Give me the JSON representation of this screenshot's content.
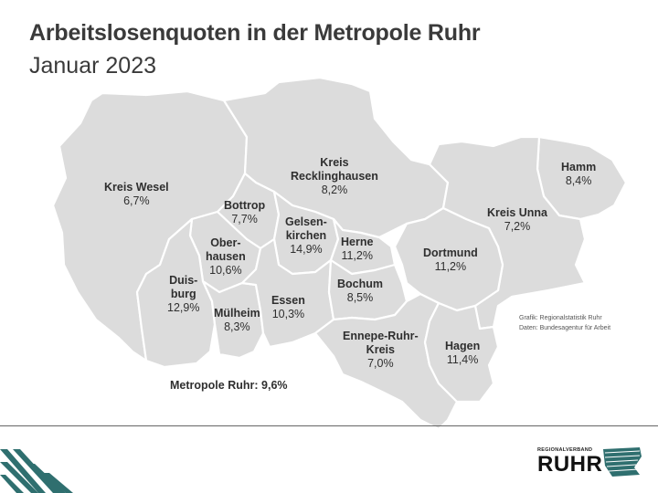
{
  "header": {
    "title": "Arbeitslosenquoten in der Metropole Ruhr",
    "subtitle": "Januar 2023"
  },
  "regions": [
    {
      "name": "Kreis Wesel",
      "value": "6,7%"
    },
    {
      "name": "Kreis Recklinghausen",
      "value": "8,2%"
    },
    {
      "name": "Hamm",
      "value": "8,4%"
    },
    {
      "name": "Bottrop",
      "value": "7,7%"
    },
    {
      "name": "Gelsenkirchen",
      "value": "14,9%"
    },
    {
      "name": "Herne",
      "value": "11,2%"
    },
    {
      "name": "Kreis Unna",
      "value": "7,2%"
    },
    {
      "name": "Oberhausen",
      "value": "10,6%"
    },
    {
      "name": "Dortmund",
      "value": "11,2%"
    },
    {
      "name": "Duisburg",
      "value": "12,9%"
    },
    {
      "name": "Mülheim",
      "value": "8,3%"
    },
    {
      "name": "Essen",
      "value": "10,3%"
    },
    {
      "name": "Bochum",
      "value": "8,5%"
    },
    {
      "name": "Ennepe-Ruhr-Kreis",
      "value": "7,0%"
    },
    {
      "name": "Hagen",
      "value": "11,4%"
    }
  ],
  "labels": {
    "wesel": {
      "l1": "Kreis Wesel"
    },
    "recklinghausen": {
      "l1": "Kreis",
      "l2": "Recklinghausen"
    },
    "hamm": {
      "l1": "Hamm"
    },
    "bottrop": {
      "l1": "Bottrop"
    },
    "gelsenkirchen": {
      "l1": "Gelsen-",
      "l2": "kirchen"
    },
    "herne": {
      "l1": "Herne"
    },
    "unna": {
      "l1": "Kreis Unna"
    },
    "oberhausen": {
      "l1": "Ober-",
      "l2": "hausen"
    },
    "dortmund": {
      "l1": "Dortmund"
    },
    "duisburg": {
      "l1": "Duis-",
      "l2": "burg"
    },
    "muelheim": {
      "l1": "Mülheim"
    },
    "essen": {
      "l1": "Essen"
    },
    "bochum": {
      "l1": "Bochum"
    },
    "ennepe": {
      "l1": "Ennepe-Ruhr-",
      "l2": "Kreis"
    },
    "hagen": {
      "l1": "Hagen"
    }
  },
  "total": {
    "label": "Metropole Ruhr:",
    "value": "9,6%"
  },
  "source": {
    "line1": "Grafik: Regionalstatistik Ruhr",
    "line2": "Daten: Bundesagentur für Arbeit"
  },
  "logo": {
    "small": "REGIONALVERBAND",
    "big": "RUHR"
  },
  "colors": {
    "region_fill": "#dcdcdc",
    "border": "#ffffff",
    "teal": "#2f6f6f"
  }
}
